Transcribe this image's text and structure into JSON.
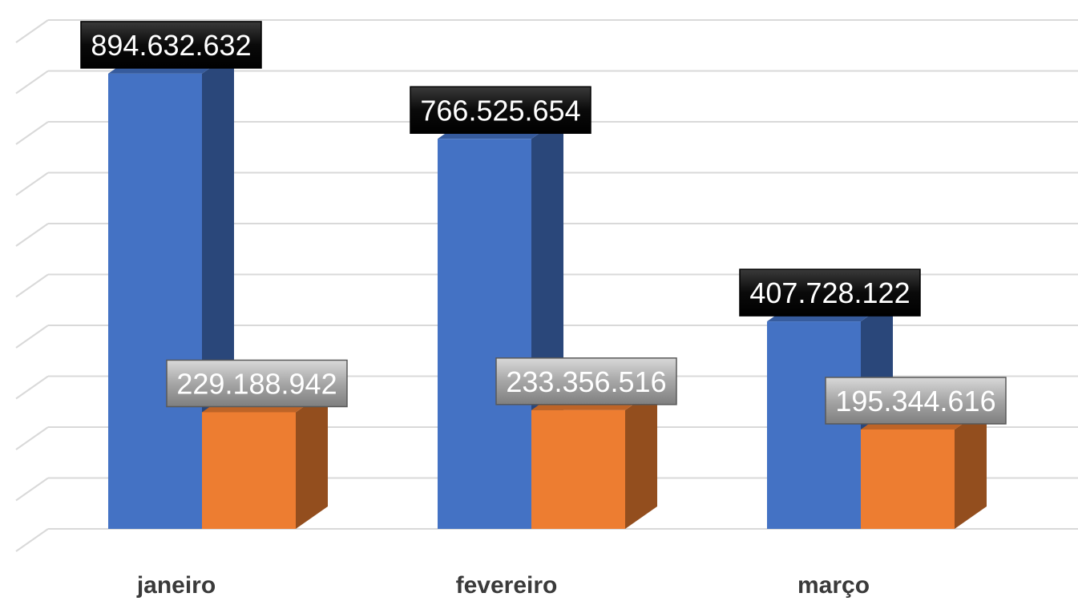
{
  "chart_data": {
    "type": "bar",
    "categories": [
      "janeiro",
      "fevereiro",
      "março"
    ],
    "series": [
      {
        "values": [
          894632632,
          766525654,
          407728122
        ],
        "labels": [
          "894.632.632",
          "766.525.654",
          "407.728.122"
        ]
      },
      {
        "values": [
          229188942,
          233356516,
          195344616
        ],
        "labels": [
          "229.188.942",
          "233.356.516",
          "195.344.616"
        ]
      }
    ],
    "ylim": [
      0,
      1000000000
    ],
    "grid": true,
    "three_d": true,
    "colors": [
      "#4472c4",
      "#ed7d31"
    ],
    "label_box_colors": [
      "#0d0d0d",
      "#a6a6a6"
    ]
  }
}
